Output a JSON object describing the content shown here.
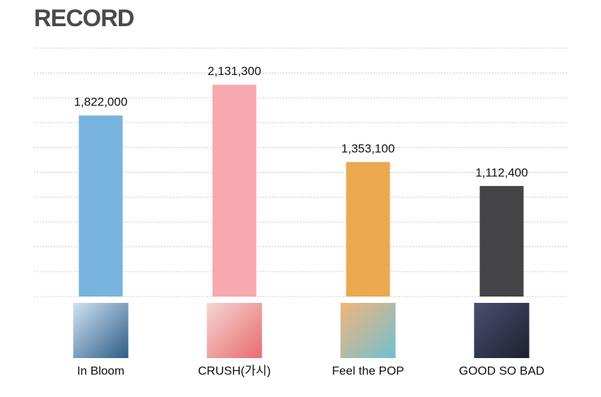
{
  "chart_data": {
    "type": "bar",
    "title": "RECORD",
    "categories": [
      "In Bloom",
      "CRUSH(가시)",
      "Feel the POP",
      "GOOD SO BAD"
    ],
    "values": [
      1822000,
      2131300,
      1353100,
      1112400
    ],
    "value_labels": [
      "1,822,000",
      "2,131,300",
      "1,353,100",
      "1,112,400"
    ],
    "colors": [
      "#78b3e0",
      "#f7a8ae",
      "#eba94f",
      "#444446"
    ],
    "ylim": [
      0,
      2500000
    ],
    "yticks": [
      0,
      250000,
      500000,
      750000,
      1000000,
      1250000,
      1500000,
      1750000,
      2000000,
      2250000,
      2500000
    ],
    "grid": true
  }
}
